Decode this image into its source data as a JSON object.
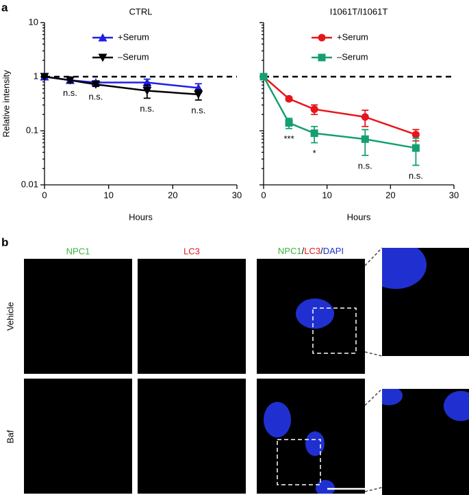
{
  "panel_a_label": "a",
  "chart_data": [
    {
      "type": "line",
      "title": "CTRL",
      "xlabel": "Hours",
      "ylabel": "Relative intensity",
      "log_y": true,
      "xlim": [
        0,
        30
      ],
      "ylim": [
        0.01,
        10
      ],
      "xticks": [
        0,
        10,
        20,
        30
      ],
      "yticks": [
        0.01,
        0.1,
        1,
        10
      ],
      "ytick_labels": true,
      "reference_line": 1,
      "legend": "upper left",
      "x": [
        0,
        4,
        8,
        16,
        24
      ],
      "series": [
        {
          "name": "+Serum",
          "color": "#1f1fe6",
          "marker": "triangle-up",
          "values": [
            1.0,
            0.86,
            0.78,
            0.78,
            0.62
          ],
          "errors": [
            0.03,
            0.08,
            0.06,
            0.12,
            0.12
          ]
        },
        {
          "name": "–Serum",
          "color": "#000000",
          "marker": "triangle-down",
          "values": [
            1.0,
            0.86,
            0.72,
            0.55,
            0.47
          ],
          "errors": [
            0.03,
            0.08,
            0.06,
            0.15,
            0.1
          ]
        }
      ],
      "annotations": [
        {
          "text": "n.s.",
          "x": 4
        },
        {
          "text": "n.s.",
          "x": 8
        },
        {
          "text": "n.s.",
          "x": 16
        },
        {
          "text": "n.s.",
          "x": 24
        }
      ]
    },
    {
      "type": "line",
      "title": "I1061T/I1061T",
      "xlabel": "Hours",
      "log_y": true,
      "xlim": [
        0,
        30
      ],
      "ylim": [
        0.01,
        10
      ],
      "xticks": [
        0,
        10,
        20,
        30
      ],
      "yticks": [
        0.01,
        0.1,
        1,
        10
      ],
      "ytick_labels": false,
      "reference_line": 1,
      "legend": "upper left",
      "x": [
        0,
        4,
        8,
        16,
        24
      ],
      "series": [
        {
          "name": "+Serum",
          "color": "#e8141b",
          "marker": "circle",
          "values": [
            1.0,
            0.39,
            0.25,
            0.18,
            0.085
          ],
          "errors": [
            0.02,
            0.03,
            0.05,
            0.06,
            0.02
          ]
        },
        {
          "name": "–Serum",
          "color": "#14a06e",
          "marker": "square",
          "values": [
            1.0,
            0.14,
            0.09,
            0.07,
            0.048
          ],
          "errors": [
            0.02,
            0.03,
            0.03,
            0.035,
            0.025
          ]
        }
      ],
      "annotations": [
        {
          "text": "***",
          "x": 4
        },
        {
          "text": "*",
          "x": 8
        },
        {
          "text": "n.s.",
          "x": 16
        },
        {
          "text": "n.s.",
          "x": 24
        }
      ]
    }
  ],
  "panel_b": {
    "label": "b",
    "columns": [
      "NPC1",
      "LC3"
    ],
    "merge_label": [
      "NPC1",
      "/",
      "LC3",
      "/",
      "DAPI"
    ],
    "rows": [
      "Vehicle",
      "Baf"
    ]
  }
}
